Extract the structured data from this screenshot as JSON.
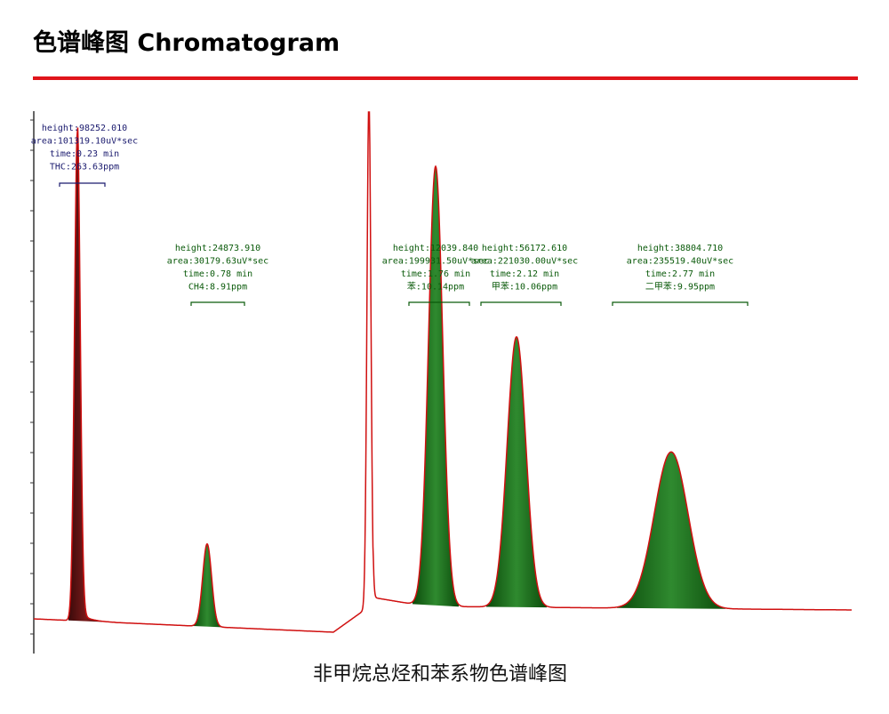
{
  "header": {
    "title": "色谱峰图 Chromatogram"
  },
  "figure": {
    "annotations": [
      {
        "lines": [
          "height:98252.010",
          "area:101319.10uV*sec",
          "time:0.23 min",
          "THC:263.63ppm"
        ]
      },
      {
        "lines": [
          "height:24873.910",
          "area:30179.63uV*sec",
          "time:0.78 min",
          "CH4:8.91ppm"
        ]
      },
      {
        "lines": [
          "height:12039.840",
          "area:199931.50uV*sec",
          "time:1.76 min",
          "苯:10.14ppm"
        ]
      },
      {
        "lines": [
          "height:56172.610",
          "area:221030.00uV*sec",
          "time:2.12 min",
          "甲苯:10.06ppm"
        ]
      },
      {
        "lines": [
          "height:38804.710",
          "area:235519.40uV*sec",
          "time:2.77 min",
          "二甲苯:9.95ppm"
        ]
      }
    ]
  },
  "caption": "非甲烷总烃和苯系物色谱峰图"
}
